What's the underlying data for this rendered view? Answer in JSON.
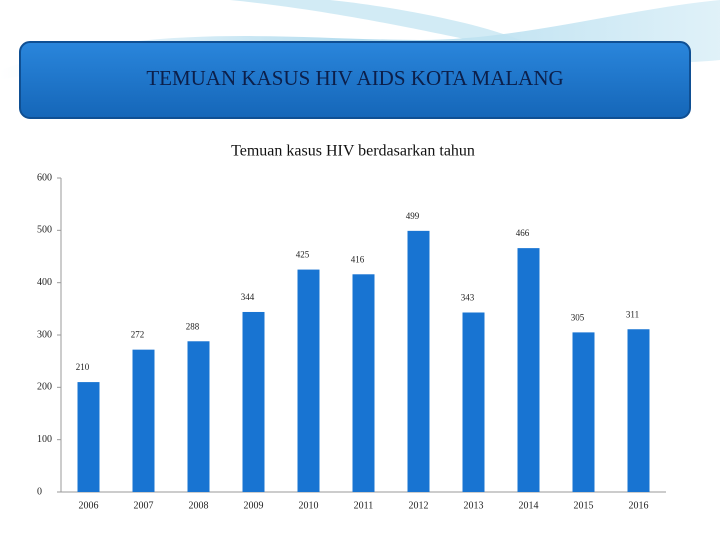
{
  "header": {
    "title": "TEMUAN KASUS HIV AIDS KOTA MALANG"
  },
  "chart_data": {
    "type": "bar",
    "title": "Temuan kasus HIV berdasarkan tahun",
    "categories": [
      "2006",
      "2007",
      "2008",
      "2009",
      "2010",
      "2011",
      "2012",
      "2013",
      "2014",
      "2015",
      "2016"
    ],
    "values": [
      210,
      272,
      288,
      344,
      425,
      416,
      499,
      343,
      466,
      305,
      311
    ],
    "color": "#1874d2",
    "ylim": [
      0,
      600
    ],
    "yticks": [
      0,
      100,
      200,
      300,
      400,
      500,
      600
    ],
    "grid": false
  }
}
